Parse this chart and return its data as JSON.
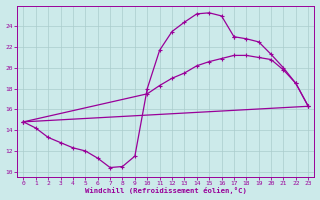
{
  "xlabel": "Windchill (Refroidissement éolien,°C)",
  "bg_color": "#cceaea",
  "grid_color": "#aacccc",
  "line_color": "#990099",
  "xlim": [
    -0.5,
    23.5
  ],
  "ylim": [
    9.5,
    26
  ],
  "xticks": [
    0,
    1,
    2,
    3,
    4,
    5,
    6,
    7,
    8,
    9,
    10,
    11,
    12,
    13,
    14,
    15,
    16,
    17,
    18,
    19,
    20,
    21,
    22,
    23
  ],
  "yticks": [
    10,
    12,
    14,
    16,
    18,
    20,
    22,
    24
  ],
  "curve1_x": [
    0,
    1,
    2,
    3,
    4,
    5,
    6,
    7,
    8,
    9,
    10,
    11,
    12,
    13,
    14,
    15,
    16,
    17
  ],
  "curve1_y": [
    14.8,
    14.2,
    13.3,
    12.8,
    12.3,
    12.0,
    11.3,
    10.4,
    10.5,
    11.5,
    18.0,
    21.7,
    23.5,
    24.4,
    25.2,
    25.3,
    25.0,
    23.0
  ],
  "curve2_x": [
    0,
    10,
    11,
    12,
    13,
    14,
    15,
    16,
    17,
    18,
    19,
    20,
    21,
    22,
    23
  ],
  "curve2_y": [
    14.8,
    17.5,
    18.3,
    19.0,
    19.5,
    20.2,
    20.6,
    20.9,
    21.2,
    21.2,
    21.0,
    20.8,
    19.8,
    18.5,
    16.3
  ],
  "curve3_x": [
    0,
    23
  ],
  "curve3_y": [
    14.8,
    16.3
  ],
  "curve4_x": [
    17,
    18,
    19,
    20,
    21,
    22,
    23
  ],
  "curve4_y": [
    23.0,
    22.8,
    22.5,
    21.3,
    20.0,
    18.5,
    16.3
  ]
}
